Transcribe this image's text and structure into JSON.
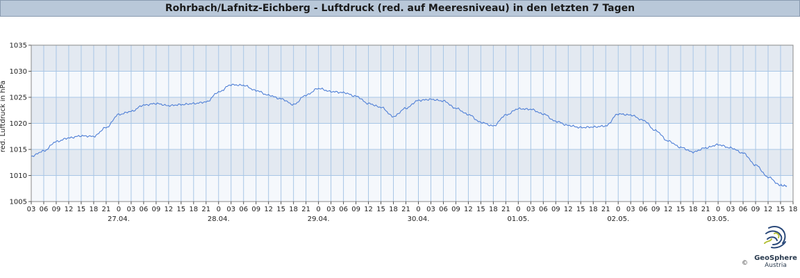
{
  "title": "Rohrbach/Lafnitz-Eichberg - Luftdruck (red. auf Meeresniveau) in den letzten 7 Tagen",
  "logo": {
    "name": "GeoSphere",
    "sub": "Austria",
    "copyright": "©"
  },
  "colors": {
    "line": "#4f7fd6",
    "band_dark": "#e3e9f1",
    "band_light": "#f5f8fc",
    "grid": "#a8c6e6"
  },
  "chart_data": {
    "type": "line",
    "title": "Rohrbach/Lafnitz-Eichberg - Luftdruck (red. auf Meeresniveau) in den letzten 7 Tagen",
    "ylabel": "red. Luftdruck in hPa",
    "xlabel": "",
    "ylim": [
      1005,
      1035
    ],
    "yticks": [
      1005,
      1010,
      1015,
      1020,
      1025,
      1030,
      1035
    ],
    "x_unit": "hours since 26.04. 03:00",
    "xlim": [
      0,
      183
    ],
    "hour_tick_labels": [
      "03",
      "06",
      "09",
      "12",
      "15",
      "18",
      "21",
      "0",
      "03",
      "06",
      "09",
      "12",
      "15",
      "18",
      "21",
      "0",
      "03",
      "06",
      "09",
      "12",
      "15",
      "18",
      "21",
      "0",
      "03",
      "06",
      "09",
      "12",
      "15",
      "18",
      "21",
      "0",
      "03",
      "06",
      "09",
      "12",
      "15",
      "18",
      "21",
      "0",
      "03",
      "06",
      "09",
      "12",
      "15",
      "18",
      "21",
      "0",
      "03",
      "06",
      "09",
      "12",
      "15",
      "18",
      "21",
      "0",
      "03",
      "06",
      "09",
      "12",
      "15",
      "18"
    ],
    "date_labels": [
      {
        "label": "27.04.",
        "hour": 21
      },
      {
        "label": "28.04.",
        "hour": 45
      },
      {
        "label": "29.04.",
        "hour": 69
      },
      {
        "label": "30.04.",
        "hour": 93
      },
      {
        "label": "01.05.",
        "hour": 117
      },
      {
        "label": "02.05.",
        "hour": 141
      },
      {
        "label": "03.05.",
        "hour": 165
      }
    ],
    "grid": true,
    "series": [
      {
        "name": "",
        "x": [
          0,
          3,
          6,
          9,
          12,
          15,
          18,
          21,
          24,
          27,
          30,
          33,
          36,
          39,
          42,
          45,
          48,
          51,
          54,
          57,
          60,
          63,
          66,
          69,
          72,
          75,
          78,
          81,
          84,
          87,
          90,
          93,
          96,
          99,
          102,
          105,
          108,
          111,
          114,
          117,
          120,
          123,
          126,
          129,
          132,
          135,
          138,
          141,
          144,
          147,
          150,
          153,
          156,
          159,
          162,
          165,
          168,
          171,
          174,
          177,
          180,
          181.5
        ],
        "values": [
          1013.7,
          1014.7,
          1016.5,
          1017.2,
          1017.6,
          1017.5,
          1019.2,
          1021.7,
          1022.3,
          1023.5,
          1023.8,
          1023.4,
          1023.6,
          1023.8,
          1024.1,
          1026.0,
          1027.4,
          1027.3,
          1026.3,
          1025.4,
          1024.7,
          1023.6,
          1025.4,
          1026.7,
          1026.1,
          1025.9,
          1025.2,
          1023.8,
          1023.1,
          1021.3,
          1022.9,
          1024.4,
          1024.6,
          1024.3,
          1022.9,
          1021.7,
          1020.2,
          1019.5,
          1021.6,
          1022.8,
          1022.7,
          1021.8,
          1020.4,
          1019.6,
          1019.2,
          1019.3,
          1019.5,
          1021.8,
          1021.6,
          1020.6,
          1018.6,
          1016.6,
          1015.4,
          1014.5,
          1015.3,
          1015.9,
          1015.3,
          1014.3,
          1012.0,
          1009.7,
          1008.1,
          1008.0
        ]
      }
    ]
  }
}
